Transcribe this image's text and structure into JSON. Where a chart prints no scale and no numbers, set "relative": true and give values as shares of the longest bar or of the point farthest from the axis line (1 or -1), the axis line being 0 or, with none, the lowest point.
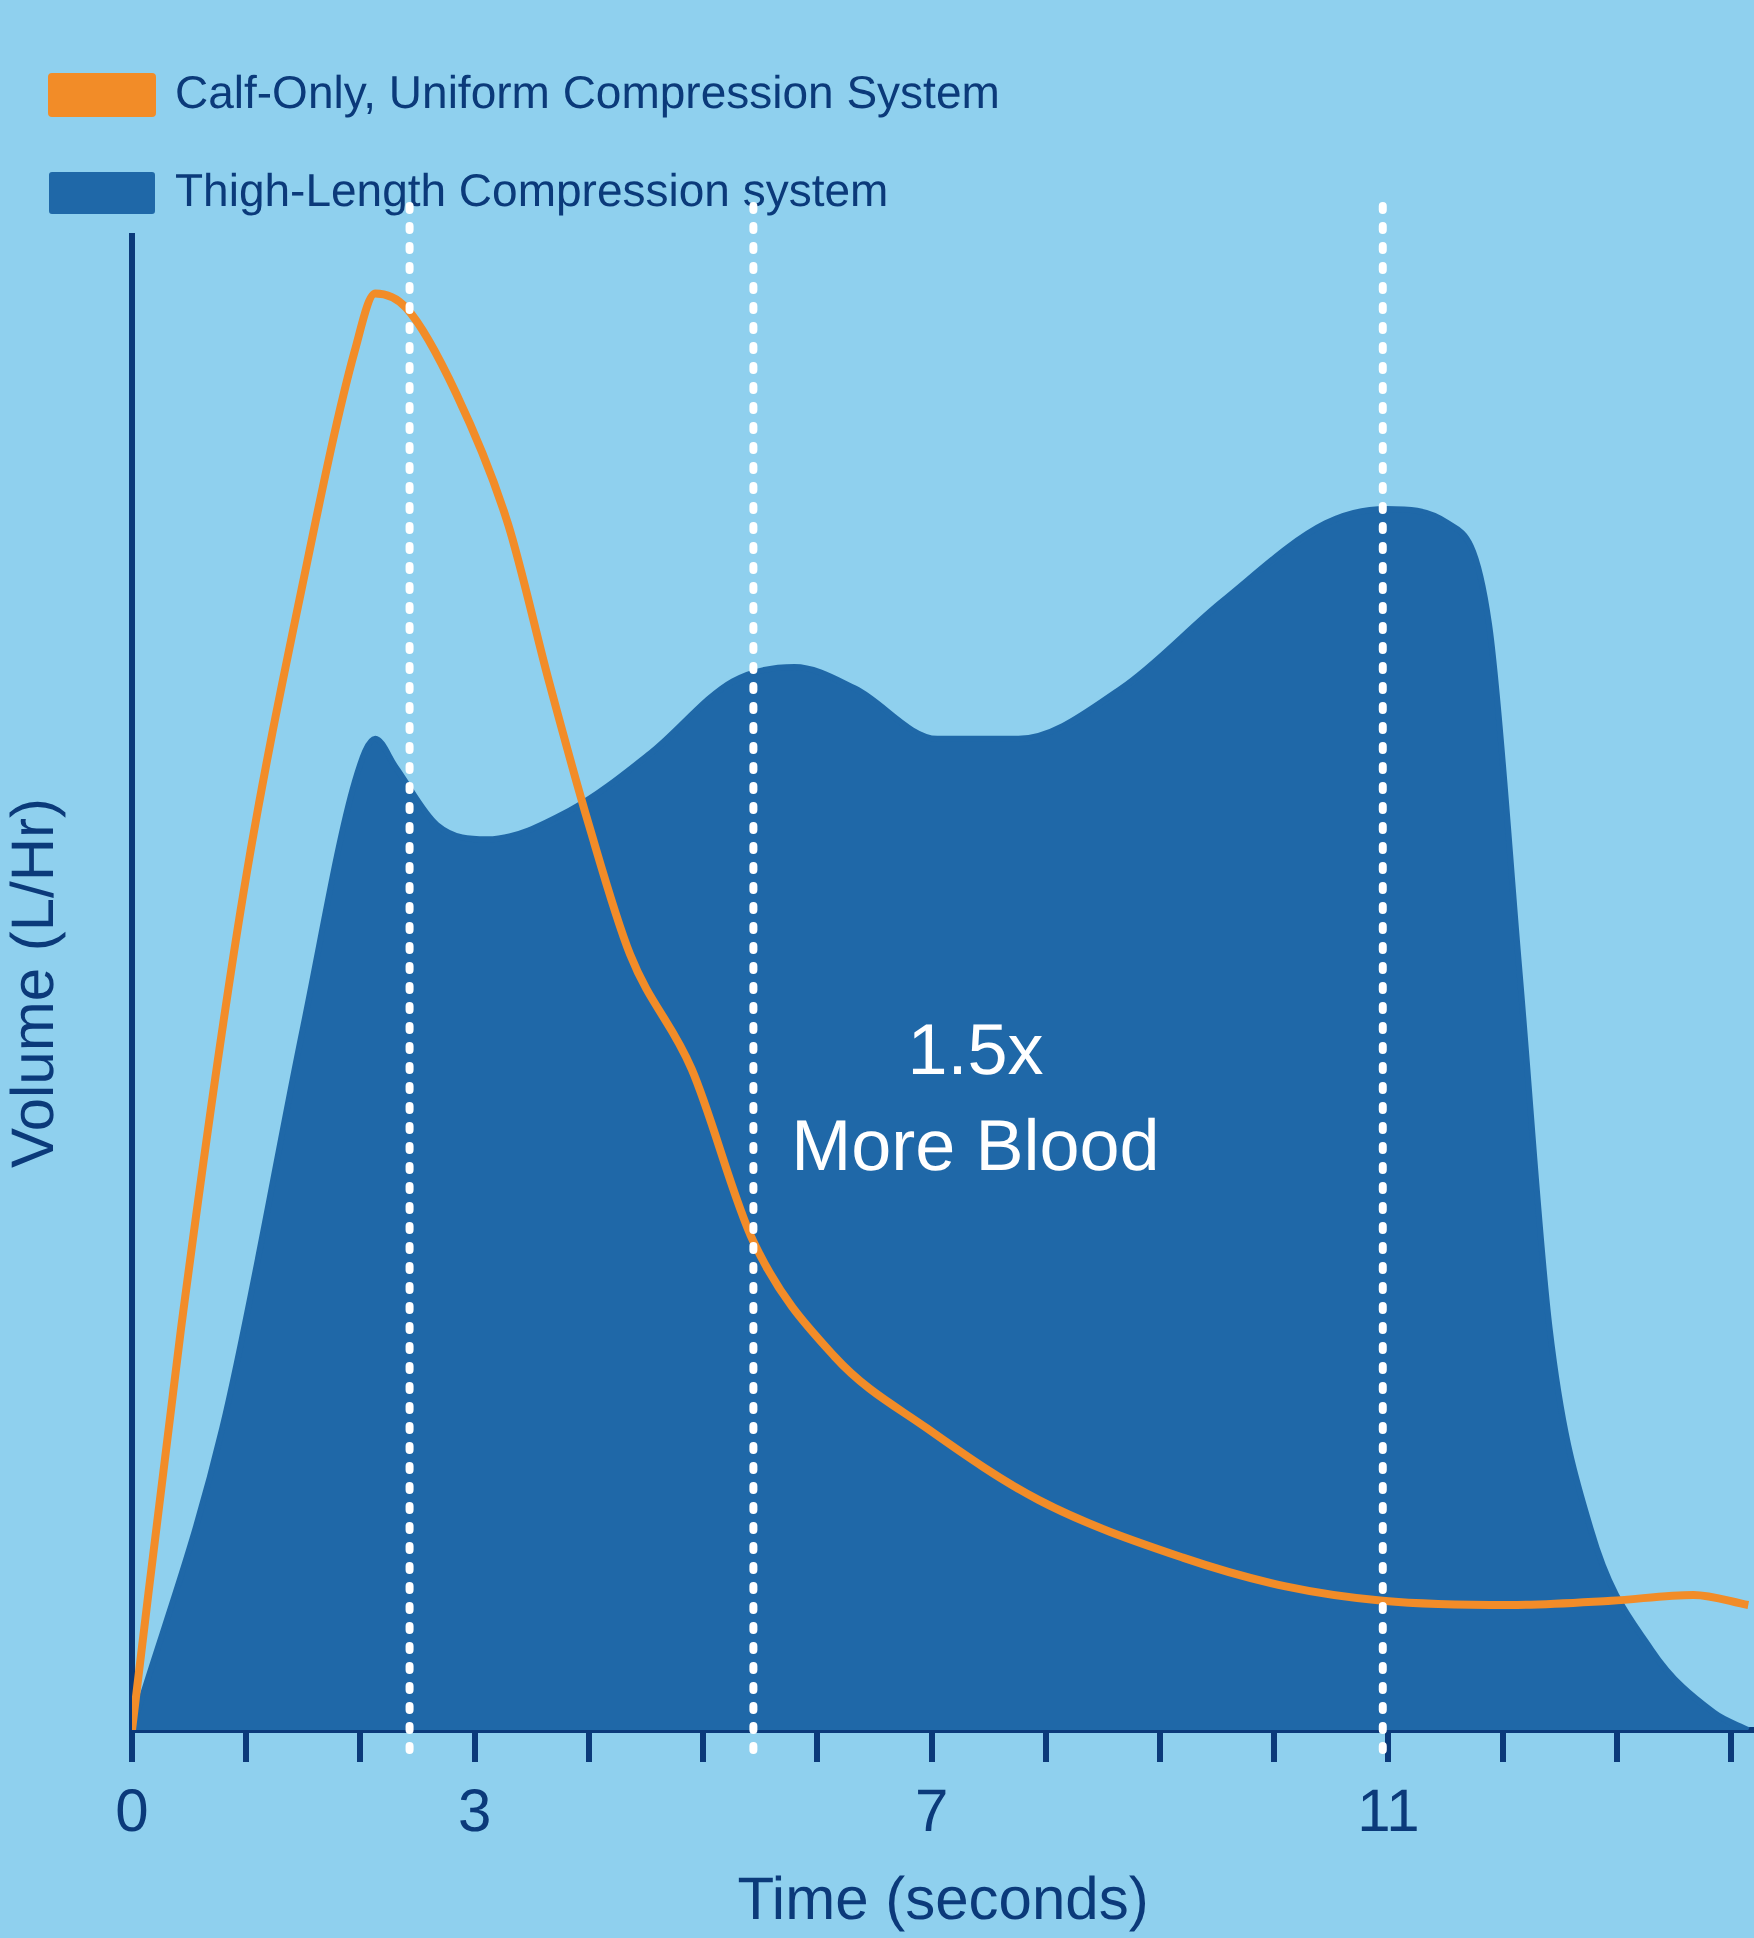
{
  "chart_data": {
    "type": "line",
    "xlabel": "Time (seconds)",
    "ylabel": "Volume (L/Hr)",
    "relative": true,
    "legend": "top left",
    "grid": false,
    "xlim": [
      0,
      14.2
    ],
    "xticks": [
      0,
      {
        "value": 1,
        "label": null
      },
      {
        "value": 2,
        "label": null
      },
      3,
      {
        "value": 4,
        "label": null
      },
      {
        "value": 5,
        "label": null
      },
      {
        "value": 6,
        "label": null
      },
      7,
      {
        "value": 8,
        "label": null
      },
      {
        "value": 9,
        "label": null
      },
      {
        "value": 10,
        "label": null
      },
      11,
      {
        "value": 12,
        "label": null
      },
      {
        "value": 13,
        "label": null
      },
      {
        "value": 14,
        "label": null
      }
    ],
    "series": [
      {
        "name": "Calf-Only, Uniform Compression System",
        "type": "line",
        "color": "#f28c28",
        "x": [
          0,
          0.43,
          0.97,
          1.5,
          1.95,
          2.13,
          2.4,
          2.84,
          3.29,
          3.65,
          4.0,
          4.36,
          4.9,
          5.44,
          6.15,
          6.96,
          7.94,
          9.2,
          10.1,
          10.95,
          12.06,
          12.95,
          13.67,
          14.15
        ],
        "values": [
          0,
          0.28,
          0.58,
          0.8,
          0.96,
          1.0,
          0.99,
          0.93,
          0.84,
          0.73,
          0.63,
          0.54,
          0.46,
          0.34,
          0.26,
          0.21,
          0.16,
          0.12,
          0.1,
          0.09,
          0.087,
          0.09,
          0.094,
          0.087
        ]
      },
      {
        "name": "Thigh-Length Compression system",
        "type": "area",
        "color": "#1f68a8",
        "x": [
          0,
          0.79,
          1.5,
          1.95,
          2.13,
          2.31,
          2.67,
          3.11,
          3.83,
          4.54,
          5.26,
          5.8,
          6.33,
          7.05,
          7.76,
          8.66,
          9.55,
          10.45,
          10.98,
          11.52,
          11.88,
          12.15,
          12.41,
          12.77,
          13.3,
          13.85,
          14.15
        ],
        "values": [
          0,
          0.21,
          0.49,
          0.66,
          0.69,
          0.67,
          0.63,
          0.62,
          0.64,
          0.68,
          0.73,
          0.74,
          0.725,
          0.69,
          0.69,
          0.725,
          0.786,
          0.84,
          0.85,
          0.84,
          0.77,
          0.525,
          0.28,
          0.14,
          0.056,
          0.012,
          0
        ]
      }
    ],
    "ref_lines": [
      {
        "axis": "x",
        "value": 2.43,
        "color": "#ffffff",
        "line_style": "dotted"
      },
      {
        "axis": "x",
        "value": 5.44,
        "color": "#ffffff",
        "line_style": "dotted"
      },
      {
        "axis": "x",
        "value": 10.95,
        "color": "#ffffff",
        "line_style": "dotted"
      }
    ],
    "annotations": [
      "1.5x\nMore Blood"
    ]
  }
}
